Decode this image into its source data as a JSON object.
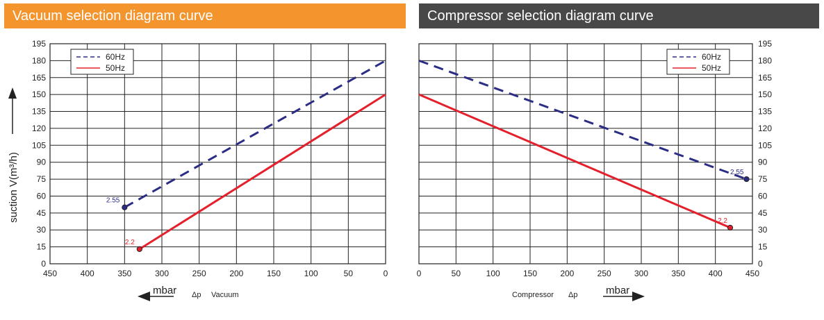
{
  "banners": {
    "left": "Vacuum  selection  diagram  curve",
    "right": "Compressor  selection diagram curve"
  },
  "colors": {
    "orange": "#f4942d",
    "dark": "#474847",
    "blue": "#2b2d84",
    "red": "#e3202b"
  },
  "ylabel": "suction V(m³/h)",
  "chart_data": [
    {
      "type": "line",
      "title": "Vacuum  selection  diagram  curve",
      "x_ticks": [
        "450",
        "400",
        "350",
        "300",
        "250",
        "200",
        "150",
        "100",
        "50",
        "0"
      ],
      "y_ticks": [
        "0",
        "15",
        "30",
        "45",
        "60",
        "75",
        "90",
        "105",
        "120",
        "135",
        "150",
        "165",
        "180",
        "195"
      ],
      "xlim": [
        450,
        0
      ],
      "ylim": [
        0,
        195
      ],
      "grid": true,
      "legend_position": "top-left",
      "xlabel_unit": "mbar",
      "xlabel_delta": "Δp",
      "xlabel_text": "Vacuum",
      "ylabel": "suction V(m³/h)",
      "series": [
        {
          "name": "60Hz",
          "style": "dashed",
          "color": "#2b2d84",
          "x": [
            350,
            0
          ],
          "y": [
            50,
            180
          ],
          "end_label": "2.55"
        },
        {
          "name": "50Hz",
          "style": "solid",
          "color": "#e3202b",
          "x": [
            330,
            0
          ],
          "y": [
            13,
            150
          ],
          "end_label": "2.2"
        }
      ]
    },
    {
      "type": "line",
      "title": "Compressor  selection diagram curve",
      "x_ticks": [
        "0",
        "50",
        "100",
        "150",
        "200",
        "250",
        "300",
        "350",
        "400",
        "450"
      ],
      "y_ticks": [
        "0",
        "15",
        "30",
        "45",
        "60",
        "75",
        "90",
        "105",
        "120",
        "135",
        "150",
        "165",
        "180",
        "195"
      ],
      "xlim": [
        0,
        450
      ],
      "ylim": [
        0,
        195
      ],
      "grid": true,
      "legend_position": "top-right",
      "xlabel_unit": "mbar",
      "xlabel_delta": "Δp",
      "xlabel_text": "Compressor",
      "series": [
        {
          "name": "60Hz",
          "style": "dashed",
          "color": "#2b2d84",
          "x": [
            0,
            442
          ],
          "y": [
            180,
            75
          ],
          "end_label": "2.55"
        },
        {
          "name": "50Hz",
          "style": "solid",
          "color": "#e3202b",
          "x": [
            0,
            420
          ],
          "y": [
            150,
            32
          ],
          "end_label": "2.2"
        }
      ]
    }
  ]
}
